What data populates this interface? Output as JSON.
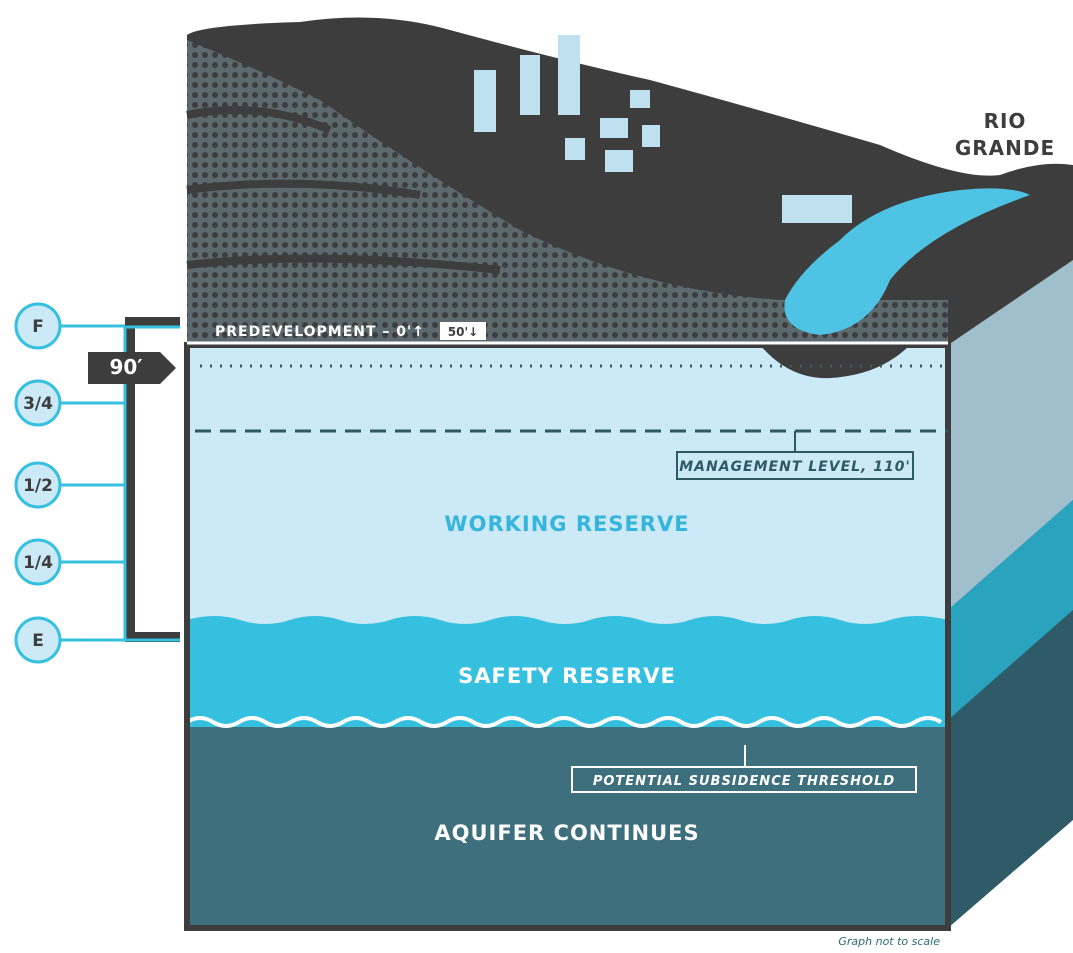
{
  "river": {
    "name": [
      "RIO",
      "GRANDE"
    ]
  },
  "gauge": {
    "marks": [
      "F",
      "3/4",
      "1/2",
      "1/4",
      "E"
    ],
    "depth": "90′"
  },
  "levels": {
    "predevelopment": "PREDEVELOPMENT – 0'↑",
    "marker": "50'↓",
    "management": "MANAGEMENT LEVEL, 110'",
    "threshold": "POTENTIAL SUBSIDENCE THRESHOLD"
  },
  "zones": [
    "WORKING RESERVE",
    "SAFETY RESERVE",
    "AQUIFER CONTINUES"
  ],
  "footnote": "Graph not to scale"
}
